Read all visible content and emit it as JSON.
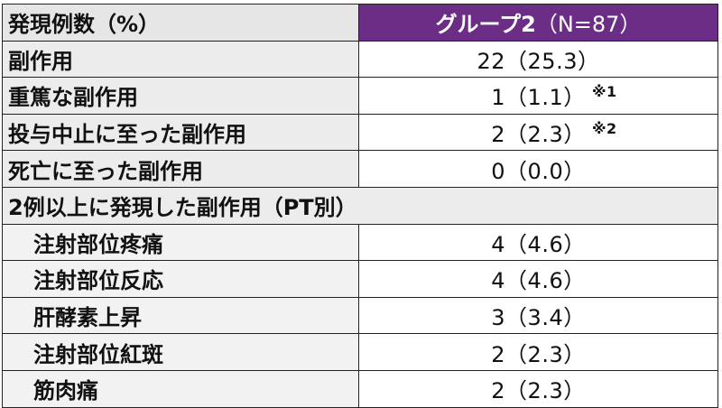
{
  "header": {
    "label": "発現例数（%）",
    "group_name": "グループ2",
    "group_n": "（N=87）"
  },
  "rows": [
    {
      "label": "副作用",
      "value": "22（25.3）",
      "note": ""
    },
    {
      "label": "重篤な副作用",
      "value": "1（1.1）",
      "note": "※1"
    },
    {
      "label": "投与中止に至った副作用",
      "value": "2（2.3）",
      "note": "※2"
    },
    {
      "label": "死亡に至った副作用",
      "value": "0（0.0）",
      "note": ""
    }
  ],
  "section_title": "2例以上に発現した副作用（PT別）",
  "pt_rows": [
    {
      "label": "注射部位疼痛",
      "value": "4（4.6）"
    },
    {
      "label": "注射部位反応",
      "value": "4（4.6）"
    },
    {
      "label": "肝酵素上昇",
      "value": "3（3.4）"
    },
    {
      "label": "注射部位紅斑",
      "value": "2（2.3）"
    },
    {
      "label": "筋肉痛",
      "value": "2（2.3）"
    }
  ]
}
